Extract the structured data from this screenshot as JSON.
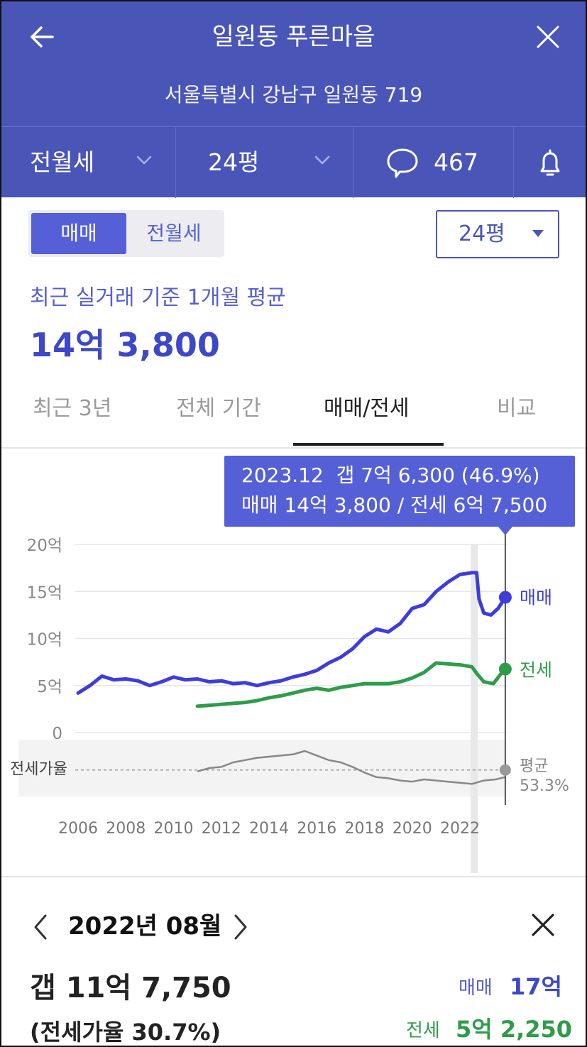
{
  "header": {
    "title": "일원동 푸른마을",
    "address": "서울특별시 강남구 일원동 719",
    "trade_type": "전월세",
    "size": "24평",
    "comment_count": "467",
    "colors": {
      "background": "#4a55b8"
    }
  },
  "toggle": {
    "sale": "매매",
    "rent": "전월세",
    "selected": "매매"
  },
  "size_select": {
    "value": "24평"
  },
  "summary": {
    "label": "최근 실거래 기준 1개월 평균",
    "value": "14억 3,800"
  },
  "tabs": [
    {
      "label": "최근 3년",
      "active": false
    },
    {
      "label": "전체 기간",
      "active": false
    },
    {
      "label": "매매/전세",
      "active": true
    },
    {
      "label": "비교",
      "active": false
    }
  ],
  "tooltip": {
    "line1": "2023.12  갭 7억 6,300 (46.9%)",
    "line2": "매매 14억 3,800 / 전세 6억 7,500"
  },
  "chart_data": {
    "type": "line",
    "x_ticks": [
      "2006",
      "2008",
      "2010",
      "2012",
      "2014",
      "2016",
      "2018",
      "2020",
      "2022"
    ],
    "y_ticks": [
      "20억",
      "15억",
      "10억",
      "5억",
      "0"
    ],
    "ylim": [
      0,
      20
    ],
    "series": [
      {
        "name": "매매",
        "color": "#3d3ddc",
        "points": [
          [
            2006.0,
            4.2
          ],
          [
            2006.5,
            5.0
          ],
          [
            2007.0,
            6.0
          ],
          [
            2007.5,
            5.6
          ],
          [
            2008.0,
            5.7
          ],
          [
            2008.5,
            5.5
          ],
          [
            2009.0,
            5.0
          ],
          [
            2009.5,
            5.4
          ],
          [
            2010.0,
            5.9
          ],
          [
            2010.5,
            5.6
          ],
          [
            2011.0,
            5.7
          ],
          [
            2011.5,
            5.4
          ],
          [
            2012.0,
            5.5
          ],
          [
            2012.5,
            5.2
          ],
          [
            2013.0,
            5.3
          ],
          [
            2013.5,
            5.0
          ],
          [
            2014.0,
            5.3
          ],
          [
            2014.5,
            5.5
          ],
          [
            2015.0,
            5.9
          ],
          [
            2015.5,
            6.2
          ],
          [
            2016.0,
            6.6
          ],
          [
            2016.5,
            7.4
          ],
          [
            2017.0,
            8.0
          ],
          [
            2017.5,
            8.9
          ],
          [
            2018.0,
            10.2
          ],
          [
            2018.5,
            11.0
          ],
          [
            2019.0,
            10.7
          ],
          [
            2019.5,
            11.6
          ],
          [
            2020.0,
            13.2
          ],
          [
            2020.5,
            13.6
          ],
          [
            2021.0,
            15.0
          ],
          [
            2021.5,
            16.0
          ],
          [
            2022.0,
            16.8
          ],
          [
            2022.5,
            17.0
          ],
          [
            2022.7,
            17.0
          ],
          [
            2022.8,
            14.2
          ],
          [
            2023.0,
            12.7
          ],
          [
            2023.3,
            12.5
          ],
          [
            2023.6,
            13.2
          ],
          [
            2023.9,
            14.38
          ]
        ]
      },
      {
        "name": "전세",
        "color": "#2e9c4a",
        "points": [
          [
            2011.0,
            2.8
          ],
          [
            2011.5,
            2.9
          ],
          [
            2012.0,
            3.0
          ],
          [
            2012.5,
            3.1
          ],
          [
            2013.0,
            3.2
          ],
          [
            2013.5,
            3.4
          ],
          [
            2014.0,
            3.7
          ],
          [
            2014.5,
            3.9
          ],
          [
            2015.0,
            4.2
          ],
          [
            2015.5,
            4.5
          ],
          [
            2016.0,
            4.7
          ],
          [
            2016.5,
            4.5
          ],
          [
            2017.0,
            4.8
          ],
          [
            2017.5,
            5.0
          ],
          [
            2018.0,
            5.2
          ],
          [
            2018.5,
            5.2
          ],
          [
            2019.0,
            5.2
          ],
          [
            2019.5,
            5.4
          ],
          [
            2020.0,
            5.8
          ],
          [
            2020.5,
            6.4
          ],
          [
            2021.0,
            7.4
          ],
          [
            2021.5,
            7.3
          ],
          [
            2022.0,
            7.2
          ],
          [
            2022.5,
            7.0
          ],
          [
            2022.7,
            6.3
          ],
          [
            2023.0,
            5.4
          ],
          [
            2023.4,
            5.2
          ],
          [
            2023.7,
            6.2
          ],
          [
            2023.9,
            6.75
          ]
        ]
      }
    ],
    "ratio_series": {
      "name": "전세가율",
      "average_label": "평균",
      "average_value": "53.3%",
      "points": [
        [
          2011.0,
          52
        ],
        [
          2011.5,
          55
        ],
        [
          2012.0,
          56
        ],
        [
          2012.5,
          60
        ],
        [
          2013.0,
          62
        ],
        [
          2013.5,
          64
        ],
        [
          2014.0,
          65
        ],
        [
          2014.5,
          66
        ],
        [
          2015.0,
          67
        ],
        [
          2015.5,
          70
        ],
        [
          2016.0,
          66
        ],
        [
          2016.5,
          62
        ],
        [
          2017.0,
          60
        ],
        [
          2017.5,
          56
        ],
        [
          2018.0,
          51
        ],
        [
          2018.5,
          47
        ],
        [
          2019.0,
          46
        ],
        [
          2019.5,
          44
        ],
        [
          2020.0,
          43
        ],
        [
          2020.5,
          45
        ],
        [
          2021.0,
          44
        ],
        [
          2021.5,
          43
        ],
        [
          2022.0,
          42
        ],
        [
          2022.5,
          41
        ],
        [
          2023.0,
          44
        ],
        [
          2023.5,
          45
        ],
        [
          2023.9,
          47
        ]
      ]
    },
    "highlight_date": 2022.6,
    "cursor_date": 2023.9,
    "grid": true,
    "legend": "right-end labels"
  },
  "detail": {
    "date": "2022년 08월",
    "gap": "갭 11억 7,750",
    "rate": "(전세가율 30.7%)",
    "sale_label": "매매",
    "sale_value": "17억",
    "rent_label": "전세",
    "rent_value": "5억 2,250"
  }
}
